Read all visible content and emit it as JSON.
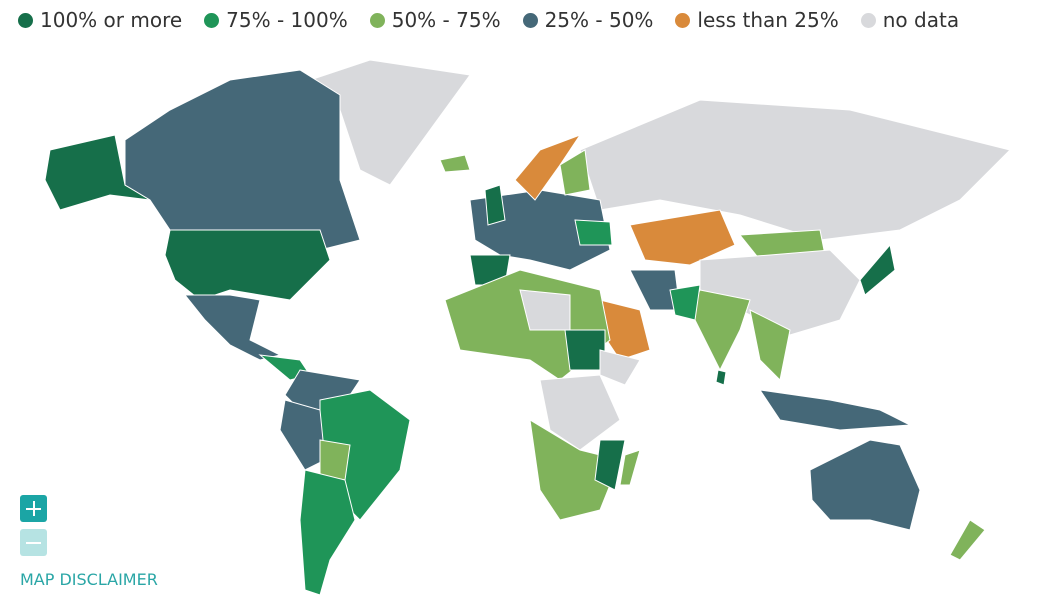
{
  "legend": [
    {
      "label": "100% or more",
      "color": "#166f4a"
    },
    {
      "label": "75% - 100%",
      "color": "#1f9558"
    },
    {
      "label": "50% - 75%",
      "color": "#80b35b"
    },
    {
      "label": "25% - 50%",
      "color": "#456878"
    },
    {
      "label": "less than 25%",
      "color": "#d98a3b"
    },
    {
      "label": "no data",
      "color": "#d8d9dc"
    }
  ],
  "map_disclaimer": "MAP DISCLAIMER"
}
